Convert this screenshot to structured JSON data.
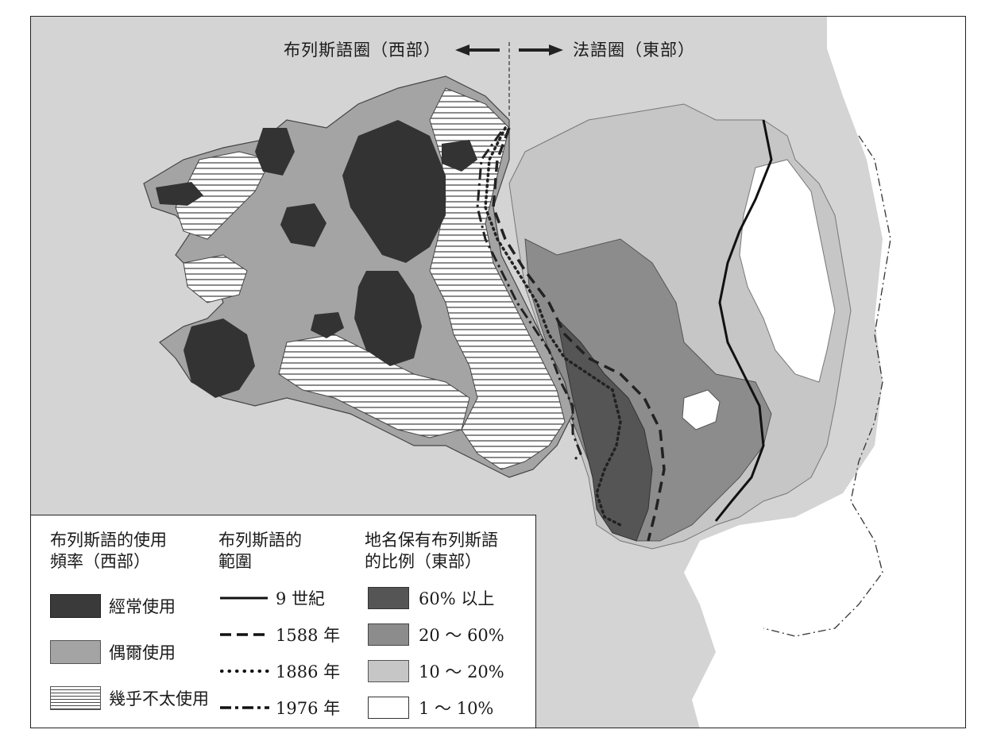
{
  "header": {
    "west_label": "布列斯語圈（西部）",
    "east_label": "法語圈（東部）"
  },
  "legend": {
    "usage": {
      "title_line1": "布列斯語的使用",
      "title_line2": "頻率（西部）",
      "items": [
        {
          "label": "經常使用",
          "color": "#3a3a3a",
          "pattern": "solid-dark"
        },
        {
          "label": "偶爾使用",
          "color": "#a4a4a4",
          "pattern": "solid-gray"
        },
        {
          "label": "幾乎不太使用",
          "color": "#ffffff",
          "pattern": "horizontal-hatch"
        }
      ]
    },
    "extent": {
      "title_line1": "布列斯語的",
      "title_line2": "範圍",
      "items": [
        {
          "label": "9 世紀",
          "line_style": "solid"
        },
        {
          "label": "1588 年",
          "line_style": "dashed"
        },
        {
          "label": "1886 年",
          "line_style": "dotted"
        },
        {
          "label": "1976 年",
          "line_style": "dash-dot"
        }
      ]
    },
    "placenames": {
      "title_line1": "地名保有布列斯語",
      "title_line2": "的比例（東部）",
      "items": [
        {
          "label": "60% 以上",
          "color": "#555555"
        },
        {
          "label": "20 ～ 60%",
          "color": "#8c8c8c"
        },
        {
          "label": "10 ～ 20%",
          "color": "#c6c6c6"
        },
        {
          "label": "1 ～ 10%",
          "color": "#ffffff"
        }
      ]
    }
  }
}
